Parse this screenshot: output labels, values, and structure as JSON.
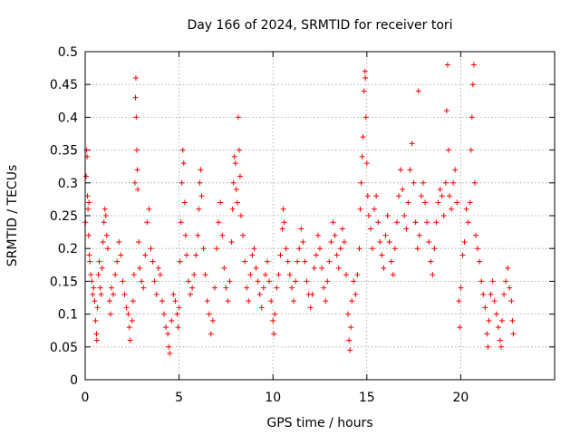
{
  "chart_data": {
    "type": "scatter",
    "title": "Day 166 of 2024, SRMTID for receiver tori",
    "xlabel": "GPS time / hours",
    "ylabel": "SRMTID / TECUs",
    "xlim": [
      0,
      25
    ],
    "ylim": [
      0,
      0.5
    ],
    "xticks": [
      0,
      5,
      10,
      15,
      20
    ],
    "xtick_labels": [
      "0",
      "5",
      "10",
      "15",
      "20"
    ],
    "yticks": [
      0,
      0.05,
      0.1,
      0.15,
      0.2,
      0.25,
      0.3,
      0.35,
      0.4,
      0.45,
      0.5
    ],
    "ytick_labels": [
      "0",
      "0.05",
      "0.1",
      "0.15",
      "0.2",
      "0.25",
      "0.3",
      "0.35",
      "0.4",
      "0.45",
      "0.5"
    ],
    "grid": true,
    "marker": "+",
    "series_color": "#ff0000",
    "series": [
      {
        "name": "SRMTID",
        "points": [
          [
            0.02,
            0.24
          ],
          [
            0.05,
            0.31
          ],
          [
            0.08,
            0.35
          ],
          [
            0.1,
            0.34
          ],
          [
            0.12,
            0.28
          ],
          [
            0.15,
            0.26
          ],
          [
            0.18,
            0.22
          ],
          [
            0.2,
            0.27
          ],
          [
            0.22,
            0.19
          ],
          [
            0.25,
            0.18
          ],
          [
            0.3,
            0.16
          ],
          [
            0.35,
            0.15
          ],
          [
            0.4,
            0.13
          ],
          [
            0.45,
            0.14
          ],
          [
            0.5,
            0.12
          ],
          [
            0.55,
            0.09
          ],
          [
            0.6,
            0.07
          ],
          [
            0.62,
            0.06
          ],
          [
            0.65,
            0.11
          ],
          [
            0.7,
            0.16
          ],
          [
            0.75,
            0.18
          ],
          [
            0.8,
            0.14
          ],
          [
            0.85,
            0.13
          ],
          [
            0.9,
            0.17
          ],
          [
            0.95,
            0.21
          ],
          [
            1.0,
            0.24
          ],
          [
            1.05,
            0.26
          ],
          [
            1.1,
            0.25
          ],
          [
            1.15,
            0.22
          ],
          [
            1.2,
            0.2
          ],
          [
            1.3,
            0.12
          ],
          [
            1.35,
            0.1
          ],
          [
            1.4,
            0.14
          ],
          [
            1.5,
            0.13
          ],
          [
            1.6,
            0.16
          ],
          [
            1.7,
            0.18
          ],
          [
            1.8,
            0.21
          ],
          [
            1.9,
            0.19
          ],
          [
            2.0,
            0.15
          ],
          [
            2.1,
            0.13
          ],
          [
            2.2,
            0.11
          ],
          [
            2.3,
            0.1
          ],
          [
            2.35,
            0.08
          ],
          [
            2.4,
            0.06
          ],
          [
            2.5,
            0.09
          ],
          [
            2.55,
            0.12
          ],
          [
            2.6,
            0.16
          ],
          [
            2.65,
            0.3
          ],
          [
            2.68,
            0.43
          ],
          [
            2.7,
            0.46
          ],
          [
            2.72,
            0.4
          ],
          [
            2.75,
            0.35
          ],
          [
            2.78,
            0.32
          ],
          [
            2.8,
            0.29
          ],
          [
            2.85,
            0.21
          ],
          [
            2.9,
            0.17
          ],
          [
            3.0,
            0.15
          ],
          [
            3.1,
            0.14
          ],
          [
            3.2,
            0.19
          ],
          [
            3.3,
            0.24
          ],
          [
            3.4,
            0.26
          ],
          [
            3.5,
            0.2
          ],
          [
            3.6,
            0.18
          ],
          [
            3.7,
            0.15
          ],
          [
            3.8,
            0.13
          ],
          [
            3.9,
            0.17
          ],
          [
            4.0,
            0.16
          ],
          [
            4.1,
            0.12
          ],
          [
            4.2,
            0.1
          ],
          [
            4.3,
            0.08
          ],
          [
            4.4,
            0.07
          ],
          [
            4.45,
            0.05
          ],
          [
            4.5,
            0.04
          ],
          [
            4.6,
            0.09
          ],
          [
            4.7,
            0.13
          ],
          [
            4.8,
            0.12
          ],
          [
            4.9,
            0.1
          ],
          [
            4.95,
            0.08
          ],
          [
            5.0,
            0.11
          ],
          [
            5.05,
            0.18
          ],
          [
            5.1,
            0.24
          ],
          [
            5.15,
            0.3
          ],
          [
            5.2,
            0.35
          ],
          [
            5.25,
            0.33
          ],
          [
            5.3,
            0.27
          ],
          [
            5.35,
            0.22
          ],
          [
            5.4,
            0.19
          ],
          [
            5.5,
            0.15
          ],
          [
            5.6,
            0.13
          ],
          [
            5.7,
            0.14
          ],
          [
            5.8,
            0.16
          ],
          [
            5.9,
            0.19
          ],
          [
            6.0,
            0.22
          ],
          [
            6.05,
            0.26
          ],
          [
            6.1,
            0.3
          ],
          [
            6.15,
            0.32
          ],
          [
            6.2,
            0.28
          ],
          [
            6.3,
            0.2
          ],
          [
            6.4,
            0.16
          ],
          [
            6.5,
            0.12
          ],
          [
            6.6,
            0.1
          ],
          [
            6.7,
            0.07
          ],
          [
            6.8,
            0.09
          ],
          [
            6.9,
            0.14
          ],
          [
            7.0,
            0.2
          ],
          [
            7.1,
            0.24
          ],
          [
            7.2,
            0.27
          ],
          [
            7.3,
            0.22
          ],
          [
            7.4,
            0.17
          ],
          [
            7.5,
            0.14
          ],
          [
            7.6,
            0.12
          ],
          [
            7.7,
            0.15
          ],
          [
            7.8,
            0.21
          ],
          [
            7.85,
            0.26
          ],
          [
            7.9,
            0.3
          ],
          [
            7.95,
            0.34
          ],
          [
            8.0,
            0.33
          ],
          [
            8.05,
            0.29
          ],
          [
            8.1,
            0.27
          ],
          [
            8.15,
            0.4
          ],
          [
            8.2,
            0.35
          ],
          [
            8.25,
            0.31
          ],
          [
            8.3,
            0.25
          ],
          [
            8.4,
            0.22
          ],
          [
            8.5,
            0.18
          ],
          [
            8.6,
            0.14
          ],
          [
            8.7,
            0.12
          ],
          [
            8.8,
            0.16
          ],
          [
            8.9,
            0.19
          ],
          [
            9.0,
            0.2
          ],
          [
            9.1,
            0.17
          ],
          [
            9.2,
            0.15
          ],
          [
            9.3,
            0.13
          ],
          [
            9.4,
            0.11
          ],
          [
            9.5,
            0.14
          ],
          [
            9.6,
            0.16
          ],
          [
            9.7,
            0.18
          ],
          [
            9.8,
            0.15
          ],
          [
            9.9,
            0.12
          ],
          [
            10.0,
            0.09
          ],
          [
            10.05,
            0.07
          ],
          [
            10.1,
            0.1
          ],
          [
            10.2,
            0.14
          ],
          [
            10.3,
            0.16
          ],
          [
            10.4,
            0.19
          ],
          [
            10.5,
            0.23
          ],
          [
            10.55,
            0.26
          ],
          [
            10.6,
            0.24
          ],
          [
            10.7,
            0.2
          ],
          [
            10.8,
            0.18
          ],
          [
            10.9,
            0.16
          ],
          [
            11.0,
            0.14
          ],
          [
            11.1,
            0.12
          ],
          [
            11.2,
            0.15
          ],
          [
            11.3,
            0.18
          ],
          [
            11.4,
            0.2
          ],
          [
            11.5,
            0.23
          ],
          [
            11.6,
            0.21
          ],
          [
            11.7,
            0.18
          ],
          [
            11.8,
            0.15
          ],
          [
            11.9,
            0.13
          ],
          [
            12.0,
            0.11
          ],
          [
            12.1,
            0.13
          ],
          [
            12.2,
            0.17
          ],
          [
            12.3,
            0.19
          ],
          [
            12.4,
            0.22
          ],
          [
            12.5,
            0.2
          ],
          [
            12.6,
            0.17
          ],
          [
            12.7,
            0.14
          ],
          [
            12.8,
            0.12
          ],
          [
            12.9,
            0.15
          ],
          [
            13.0,
            0.18
          ],
          [
            13.1,
            0.21
          ],
          [
            13.2,
            0.24
          ],
          [
            13.3,
            0.22
          ],
          [
            13.4,
            0.19
          ],
          [
            13.5,
            0.17
          ],
          [
            13.6,
            0.2
          ],
          [
            13.7,
            0.23
          ],
          [
            13.8,
            0.21
          ],
          [
            13.9,
            0.16
          ],
          [
            14.0,
            0.1
          ],
          [
            14.05,
            0.06
          ],
          [
            14.1,
            0.045
          ],
          [
            14.15,
            0.08
          ],
          [
            14.2,
            0.12
          ],
          [
            14.3,
            0.15
          ],
          [
            14.4,
            0.13
          ],
          [
            14.5,
            0.16
          ],
          [
            14.6,
            0.2
          ],
          [
            14.65,
            0.26
          ],
          [
            14.7,
            0.3
          ],
          [
            14.75,
            0.34
          ],
          [
            14.8,
            0.37
          ],
          [
            14.85,
            0.44
          ],
          [
            14.9,
            0.47
          ],
          [
            14.92,
            0.46
          ],
          [
            14.95,
            0.4
          ],
          [
            15.0,
            0.33
          ],
          [
            15.05,
            0.28
          ],
          [
            15.1,
            0.25
          ],
          [
            15.2,
            0.23
          ],
          [
            15.3,
            0.2
          ],
          [
            15.4,
            0.26
          ],
          [
            15.5,
            0.28
          ],
          [
            15.6,
            0.24
          ],
          [
            15.7,
            0.21
          ],
          [
            15.8,
            0.19
          ],
          [
            15.9,
            0.17
          ],
          [
            16.0,
            0.22
          ],
          [
            16.1,
            0.25
          ],
          [
            16.2,
            0.21
          ],
          [
            16.3,
            0.18
          ],
          [
            16.4,
            0.16
          ],
          [
            16.5,
            0.2
          ],
          [
            16.6,
            0.24
          ],
          [
            16.7,
            0.28
          ],
          [
            16.8,
            0.32
          ],
          [
            16.9,
            0.29
          ],
          [
            17.0,
            0.25
          ],
          [
            17.1,
            0.23
          ],
          [
            17.2,
            0.27
          ],
          [
            17.3,
            0.32
          ],
          [
            17.4,
            0.36
          ],
          [
            17.5,
            0.3
          ],
          [
            17.6,
            0.24
          ],
          [
            17.7,
            0.2
          ],
          [
            17.75,
            0.44
          ],
          [
            17.8,
            0.22
          ],
          [
            17.9,
            0.28
          ],
          [
            18.0,
            0.3
          ],
          [
            18.1,
            0.27
          ],
          [
            18.2,
            0.24
          ],
          [
            18.3,
            0.21
          ],
          [
            18.4,
            0.18
          ],
          [
            18.5,
            0.16
          ],
          [
            18.6,
            0.2
          ],
          [
            18.7,
            0.24
          ],
          [
            18.8,
            0.27
          ],
          [
            18.9,
            0.29
          ],
          [
            19.0,
            0.28
          ],
          [
            19.1,
            0.25
          ],
          [
            19.2,
            0.3
          ],
          [
            19.25,
            0.41
          ],
          [
            19.3,
            0.48
          ],
          [
            19.35,
            0.35
          ],
          [
            19.4,
            0.28
          ],
          [
            19.5,
            0.26
          ],
          [
            19.6,
            0.3
          ],
          [
            19.7,
            0.32
          ],
          [
            19.8,
            0.27
          ],
          [
            19.9,
            0.12
          ],
          [
            19.95,
            0.08
          ],
          [
            20.0,
            0.14
          ],
          [
            20.1,
            0.19
          ],
          [
            20.2,
            0.21
          ],
          [
            20.3,
            0.26
          ],
          [
            20.4,
            0.24
          ],
          [
            20.5,
            0.27
          ],
          [
            20.55,
            0.35
          ],
          [
            20.6,
            0.4
          ],
          [
            20.65,
            0.45
          ],
          [
            20.7,
            0.48
          ],
          [
            20.75,
            0.3
          ],
          [
            20.8,
            0.22
          ],
          [
            20.9,
            0.2
          ],
          [
            21.0,
            0.18
          ],
          [
            21.1,
            0.15
          ],
          [
            21.2,
            0.13
          ],
          [
            21.3,
            0.11
          ],
          [
            21.4,
            0.07
          ],
          [
            21.45,
            0.05
          ],
          [
            21.5,
            0.09
          ],
          [
            21.6,
            0.13
          ],
          [
            21.7,
            0.15
          ],
          [
            21.8,
            0.12
          ],
          [
            21.9,
            0.1
          ],
          [
            22.0,
            0.08
          ],
          [
            22.1,
            0.06
          ],
          [
            22.15,
            0.05
          ],
          [
            22.2,
            0.09
          ],
          [
            22.3,
            0.13
          ],
          [
            22.4,
            0.15
          ],
          [
            22.5,
            0.17
          ],
          [
            22.6,
            0.14
          ],
          [
            22.7,
            0.12
          ],
          [
            22.75,
            0.09
          ],
          [
            22.8,
            0.07
          ]
        ]
      }
    ]
  }
}
